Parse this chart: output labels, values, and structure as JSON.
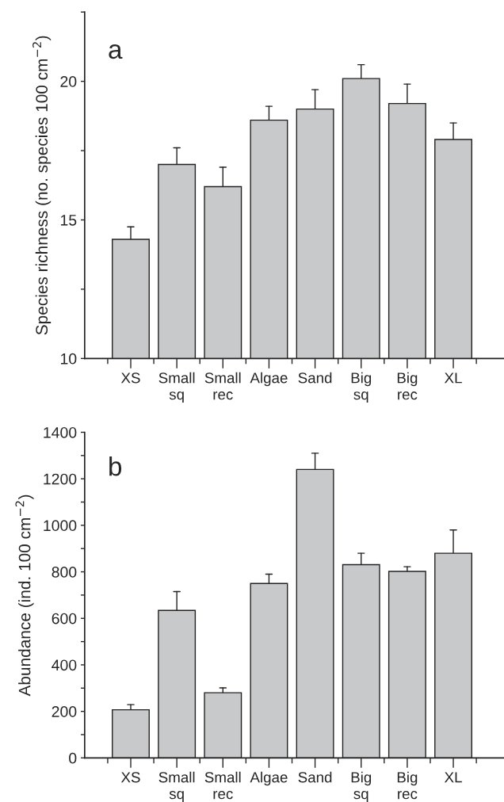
{
  "chart_data": [
    {
      "type": "bar",
      "ylabel": "Species richness (no. species 100 cm$^{−2}$)",
      "annotations": [
        "a"
      ],
      "categories": [
        "XS",
        "Small\nsq",
        "Small\nrec",
        "Algae",
        "Sand",
        "Big\nsq",
        "Big\nrec",
        "XL"
      ],
      "values": [
        14.3,
        17.0,
        16.2,
        18.6,
        19.0,
        20.1,
        19.2,
        17.9
      ],
      "errors": [
        [
          14.3,
          14.75
        ],
        [
          17.0,
          17.6
        ],
        [
          16.2,
          16.9
        ],
        [
          18.6,
          19.1
        ],
        [
          19.0,
          19.7
        ],
        [
          20.1,
          20.6
        ],
        [
          19.2,
          19.9
        ],
        [
          17.9,
          18.5
        ]
      ],
      "color": "#c8c9cb",
      "ylim": [
        10,
        22.5
      ],
      "yticks": [
        10,
        {
          "value": 12.5,
          "label": null
        },
        15,
        {
          "value": 17.5,
          "label": null
        },
        20,
        {
          "value": 22.5,
          "label": null
        }
      ],
      "grid": false,
      "legend": false
    },
    {
      "type": "bar",
      "ylabel": "Abundance (ind. 100 cm$^{−2}$)",
      "annotations": [
        "b"
      ],
      "categories": [
        "XS",
        "Small\nsq",
        "Small\nrec",
        "Algae",
        "Sand",
        "Big\nsq",
        "Big\nrec",
        "XL"
      ],
      "values": [
        207,
        634,
        280,
        750,
        1240,
        831,
        802,
        880
      ],
      "errors": [
        [
          207,
          229
        ],
        [
          634,
          715
        ],
        [
          280,
          301
        ],
        [
          750,
          790
        ],
        [
          1240,
          1310
        ],
        [
          831,
          880
        ],
        [
          802,
          822
        ],
        [
          880,
          980
        ]
      ],
      "color": "#c8c9cb",
      "ylim": [
        0,
        1400
      ],
      "yticks": [
        0,
        {
          "value": 100,
          "label": null
        },
        200,
        {
          "value": 300,
          "label": null
        },
        400,
        {
          "value": 500,
          "label": null
        },
        600,
        {
          "value": 700,
          "label": null
        },
        800,
        {
          "value": 900,
          "label": null
        },
        1000,
        {
          "value": 1100,
          "label": null
        },
        1200,
        {
          "value": 1300,
          "label": null
        },
        1400
      ],
      "grid": false,
      "legend": false
    }
  ]
}
